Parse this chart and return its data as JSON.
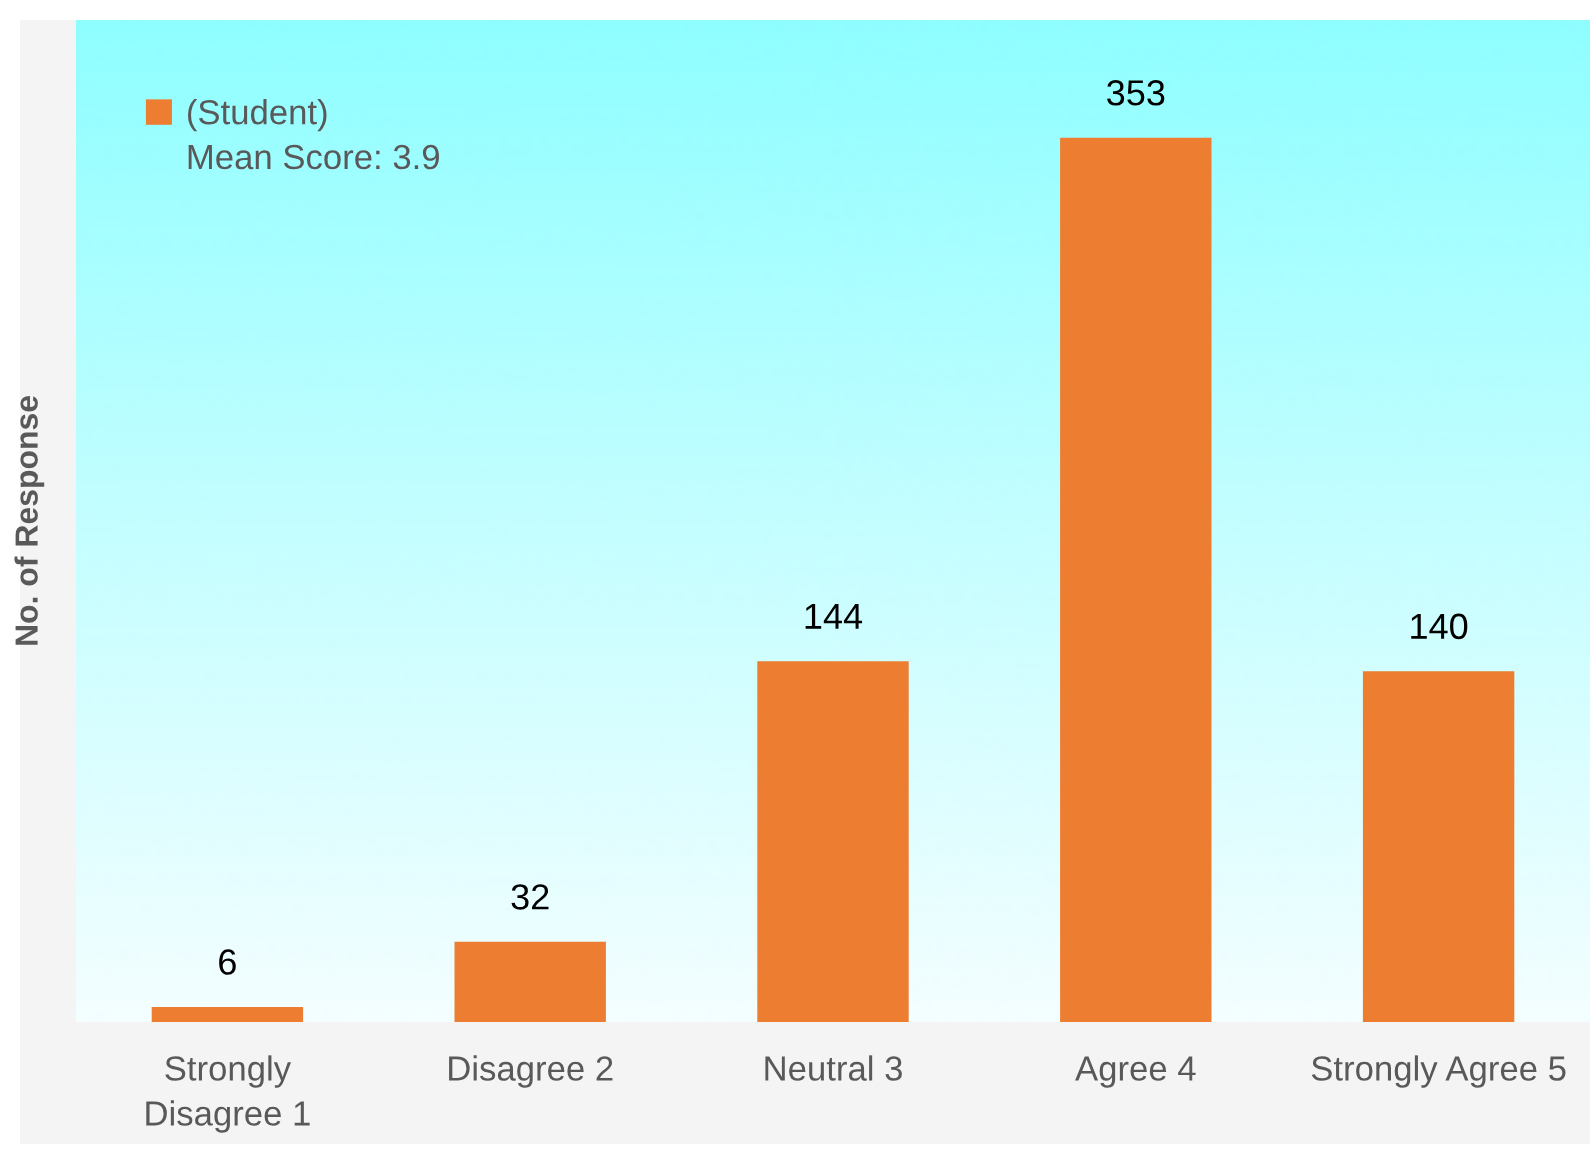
{
  "chart_data": {
    "type": "bar",
    "ylabel": "No. of Response",
    "categories": [
      "Strongly\nDisagree 1",
      "Disagree 2",
      "Neutral 3",
      "Agree 4",
      "Strongly Agree 5"
    ],
    "series": [
      {
        "name": "(Student)",
        "color": "#ed7d31",
        "values": [
          6,
          32,
          144,
          353,
          140
        ]
      }
    ],
    "data_labels": true,
    "legend": "top left",
    "annotations": [
      "Mean Score: 3.9"
    ],
    "ylim": [
      0,
      400
    ],
    "tick_labels": "x",
    "grid": false
  }
}
